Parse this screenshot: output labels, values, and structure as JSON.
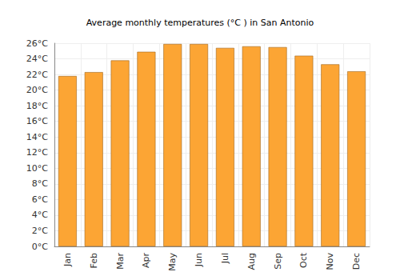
{
  "chart_data": {
    "type": "bar",
    "title": "Average monthly temperatures (°C ) in San Antonio",
    "categories": [
      "Jan",
      "Feb",
      "Mar",
      "Apr",
      "May",
      "Jun",
      "Jul",
      "Aug",
      "Sep",
      "Oct",
      "Nov",
      "Dec"
    ],
    "values": [
      21.8,
      22.3,
      23.8,
      24.9,
      25.9,
      25.9,
      25.4,
      25.6,
      25.5,
      24.4,
      23.3,
      22.4
    ],
    "color": "#fca534",
    "ylim": [
      0,
      26
    ],
    "yticks": [
      {
        "value": 0,
        "label": "0°C"
      },
      {
        "value": 2,
        "label": "2°C"
      },
      {
        "value": 4,
        "label": "4°C"
      },
      {
        "value": 6,
        "label": "6°C"
      },
      {
        "value": 8,
        "label": "8°C"
      },
      {
        "value": 10,
        "label": "10°C"
      },
      {
        "value": 12,
        "label": "12°C"
      },
      {
        "value": 14,
        "label": "14°C"
      },
      {
        "value": 16,
        "label": "16°C"
      },
      {
        "value": 18,
        "label": "18°C"
      },
      {
        "value": 20,
        "label": "20°C"
      },
      {
        "value": 22,
        "label": "22°C"
      },
      {
        "value": 24,
        "label": "24°C"
      },
      {
        "value": 26,
        "label": "26°C"
      }
    ],
    "grid": true
  }
}
